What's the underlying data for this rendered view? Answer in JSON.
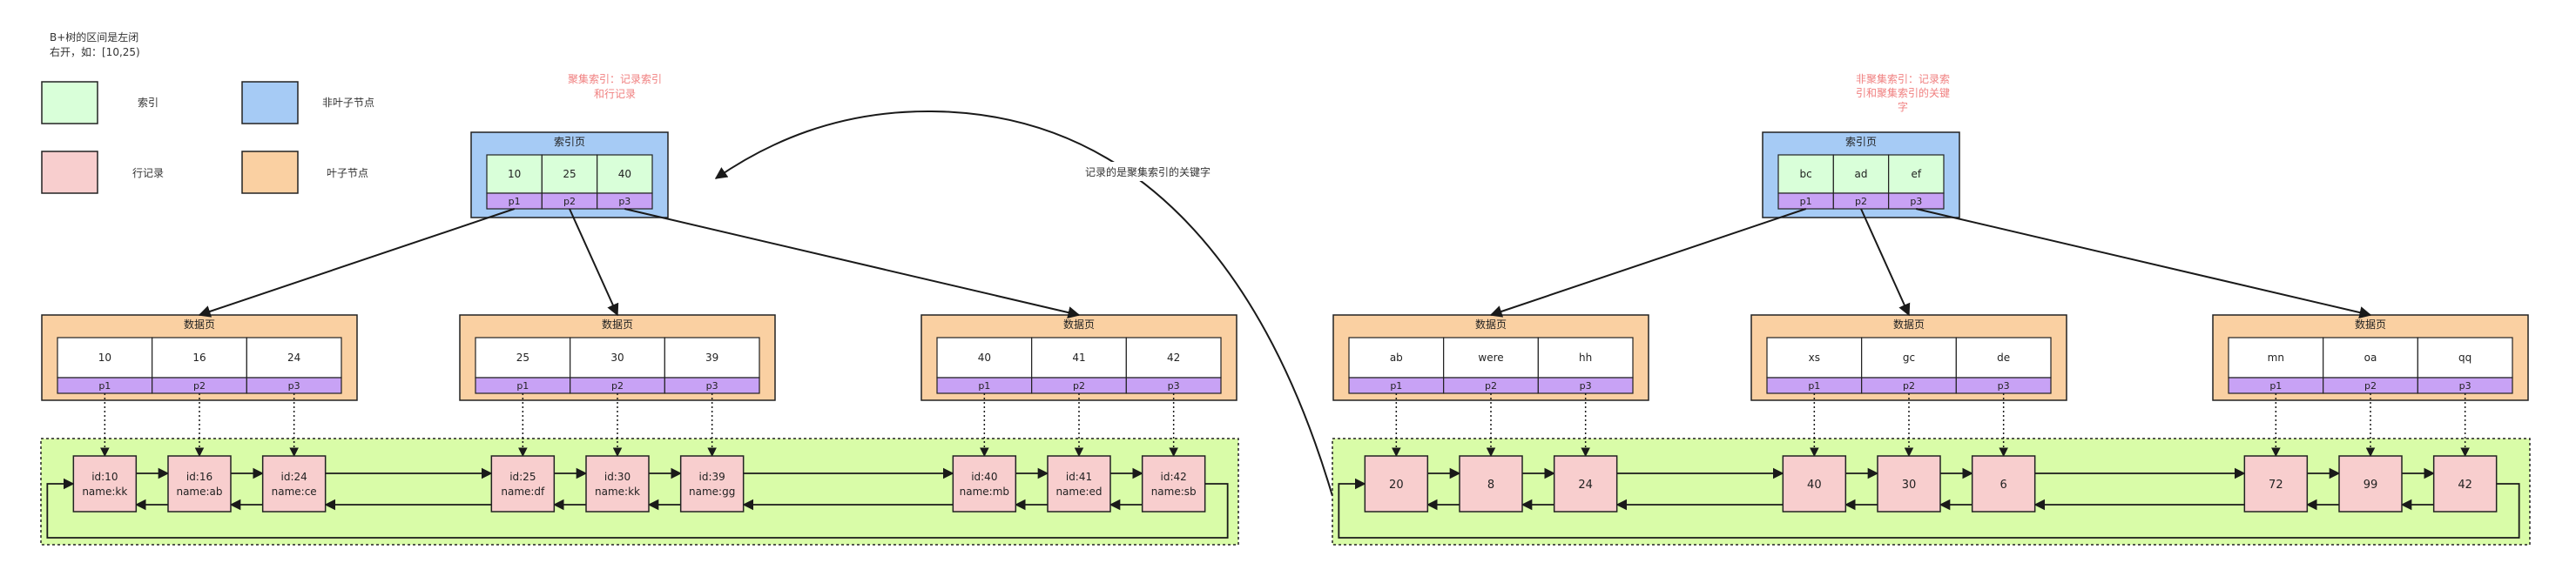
{
  "legend": {
    "note": [
      "B+树的区间是左闭",
      "右开，如：[10,25)"
    ],
    "items": [
      {
        "label": "索引",
        "color": "#d9ffd9"
      },
      {
        "label": "非叶子节点",
        "color": "#a6cbf5"
      },
      {
        "label": "行记录",
        "color": "#f8cece"
      },
      {
        "label": "叶子节点",
        "color": "#fad0a2"
      }
    ]
  },
  "colors": {
    "index": "#d9ffd9",
    "nonleaf": "#a6cbf5",
    "row": "#f8cece",
    "leaf": "#fad0a2",
    "pointer": "#c8a2f5",
    "rowArea": "#d9fca8",
    "note": "#f08080"
  },
  "pointer_labels": [
    "p1",
    "p2",
    "p3"
  ],
  "annotations": {
    "clustered": [
      "聚集索引：记录索引",
      "和行记录"
    ],
    "secondary": [
      "非聚集索引：记录索",
      "引和聚集索引的关键",
      "字"
    ],
    "arrow_label": "记录的是聚集索引的关键字"
  },
  "trees": [
    {
      "root": {
        "title": "索引页",
        "keys": [
          "10",
          "25",
          "40"
        ]
      },
      "pages": [
        {
          "title": "数据页",
          "keys": [
            "10",
            "16",
            "24"
          ]
        },
        {
          "title": "数据页",
          "keys": [
            "25",
            "30",
            "39"
          ]
        },
        {
          "title": "数据页",
          "keys": [
            "40",
            "41",
            "42"
          ]
        }
      ],
      "rows": [
        [
          "id:10",
          "name:kk"
        ],
        [
          "id:16",
          "name:ab"
        ],
        [
          "id:24",
          "name:ce"
        ],
        [
          "id:25",
          "name:df"
        ],
        [
          "id:30",
          "name:kk"
        ],
        [
          "id:39",
          "name:gg"
        ],
        [
          "id:40",
          "name:mb"
        ],
        [
          "id:41",
          "name:ed"
        ],
        [
          "id:42",
          "name:sb"
        ]
      ]
    },
    {
      "root": {
        "title": "索引页",
        "keys": [
          "bc",
          "ad",
          "ef"
        ]
      },
      "pages": [
        {
          "title": "数据页",
          "keys": [
            "ab",
            "were",
            "hh"
          ]
        },
        {
          "title": "数据页",
          "keys": [
            "xs",
            "gc",
            "de"
          ]
        },
        {
          "title": "数据页",
          "keys": [
            "mn",
            "oa",
            "qq"
          ]
        }
      ],
      "rows": [
        [
          "20"
        ],
        [
          "8"
        ],
        [
          "24"
        ],
        [
          "40"
        ],
        [
          "30"
        ],
        [
          "6"
        ],
        [
          "72"
        ],
        [
          "99"
        ],
        [
          "42"
        ]
      ]
    }
  ]
}
